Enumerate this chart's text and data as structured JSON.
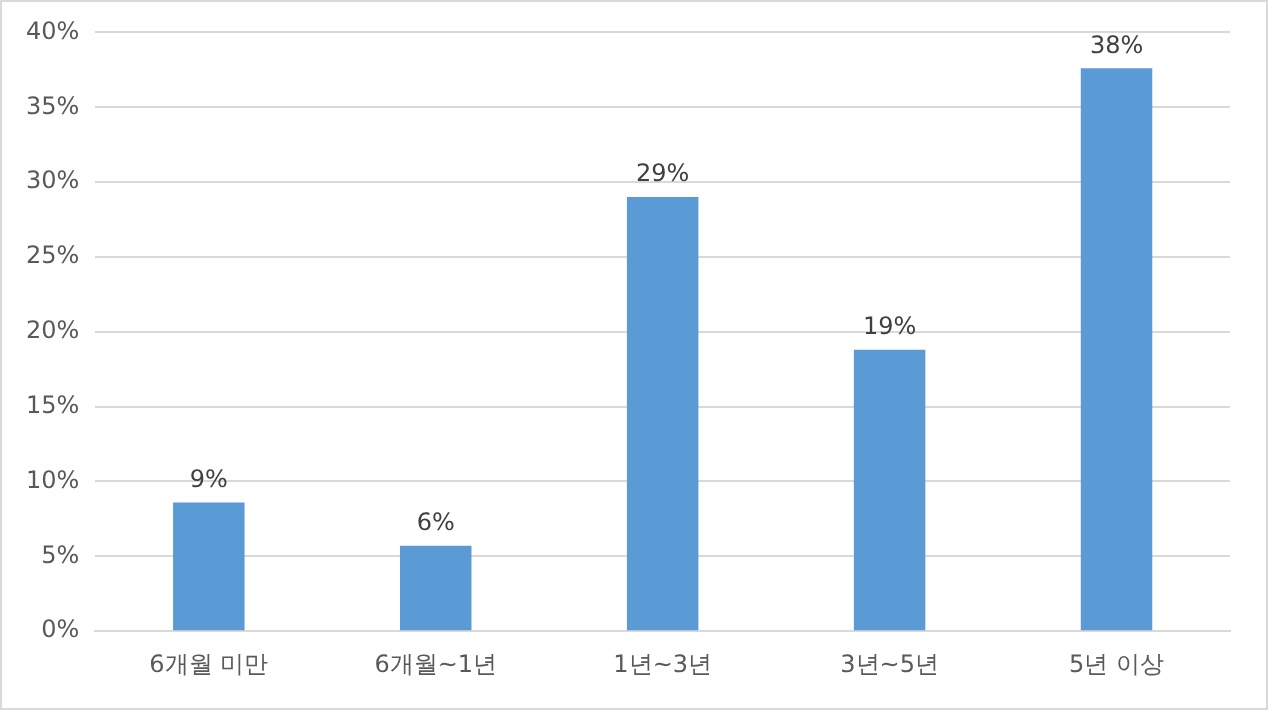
{
  "chart_data": {
    "type": "bar",
    "categories": [
      "6개월 미만",
      "6개월~1년",
      "1년~3년",
      "3년~5년",
      "5년 이상"
    ],
    "values": [
      8.6,
      5.7,
      29.0,
      18.8,
      37.6
    ],
    "value_labels": [
      "9%",
      "6%",
      "29%",
      "19%",
      "38%"
    ],
    "color": "#5b9bd5",
    "ylim": [
      0,
      40
    ],
    "yticks": [
      {
        "value": 0,
        "label": "0%"
      },
      {
        "value": 5,
        "label": "5%"
      },
      {
        "value": 10,
        "label": "10%"
      },
      {
        "value": 15,
        "label": "15%"
      },
      {
        "value": 20,
        "label": "20%"
      },
      {
        "value": 25,
        "label": "25%"
      },
      {
        "value": 30,
        "label": "30%"
      },
      {
        "value": 35,
        "label": "35%"
      },
      {
        "value": 40,
        "label": "40%"
      }
    ],
    "grid": "y",
    "legend": false
  }
}
